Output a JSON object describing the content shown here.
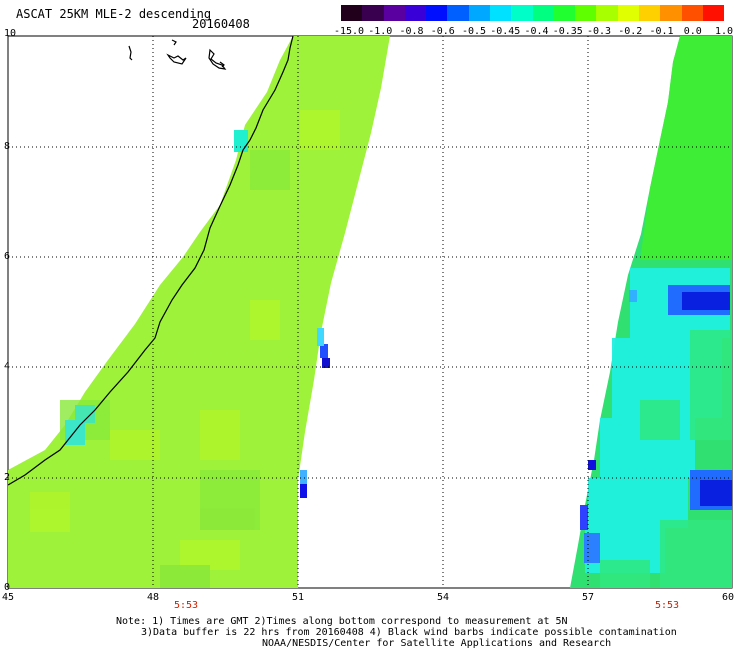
{
  "title": "ASCAT 25KM MLE-2 descending",
  "date": "20160408",
  "colorbar": {
    "labels": [
      "-15.0",
      "-1.0",
      "-0.8",
      "-0.6",
      "-0.5",
      "-0.45",
      "-0.4",
      "-0.35",
      "-0.3",
      "-0.2",
      "-0.1",
      "0.0",
      "1.0"
    ],
    "colors": [
      "#20001a",
      "#3a0050",
      "#5a00a0",
      "#3a00d8",
      "#0010ff",
      "#0060ff",
      "#00a8ff",
      "#00e0ff",
      "#00ffc8",
      "#00ff80",
      "#20ff30",
      "#60ff00",
      "#a8ff00",
      "#e0ff00",
      "#ffd000",
      "#ff9000",
      "#ff5000",
      "#ff1000"
    ]
  },
  "axes": {
    "x_ticks": [
      "45",
      "48",
      "51",
      "54",
      "57",
      "60"
    ],
    "y_ticks": [
      "0",
      "2",
      "4",
      "6",
      "8",
      "10"
    ]
  },
  "pass_times": [
    "5:53",
    "5:53"
  ],
  "notes": [
    "Note: 1) Times are GMT 2)Times along bottom correspond to measurement at 5N",
    "3)Data buffer is 22 hrs from 20160408 4) Black wind barbs indicate possible contamination",
    "NOAA/NESDIS/Center for Satellite Applications and Research"
  ]
}
